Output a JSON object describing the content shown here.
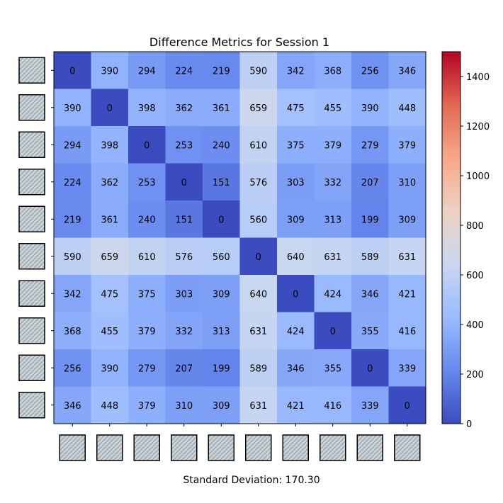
{
  "chart_data": {
    "type": "heatmap",
    "title": "Difference Metrics for Session 1",
    "row_thumbnails": [
      "image-thumbnail",
      "image-thumbnail",
      "image-thumbnail",
      "image-thumbnail",
      "image-thumbnail",
      "image-thumbnail",
      "image-thumbnail",
      "image-thumbnail",
      "image-thumbnail",
      "image-thumbnail"
    ],
    "col_thumbnails": [
      "image-thumbnail",
      "image-thumbnail",
      "image-thumbnail",
      "image-thumbnail",
      "image-thumbnail",
      "image-thumbnail",
      "image-thumbnail",
      "image-thumbnail",
      "image-thumbnail",
      "image-thumbnail"
    ],
    "matrix": [
      [
        0,
        390,
        294,
        224,
        219,
        590,
        342,
        368,
        256,
        346
      ],
      [
        390,
        0,
        398,
        362,
        361,
        659,
        475,
        455,
        390,
        448
      ],
      [
        294,
        398,
        0,
        253,
        240,
        610,
        375,
        379,
        279,
        379
      ],
      [
        224,
        362,
        253,
        0,
        151,
        576,
        303,
        332,
        207,
        310
      ],
      [
        219,
        361,
        240,
        151,
        0,
        560,
        309,
        313,
        199,
        309
      ],
      [
        590,
        659,
        610,
        576,
        560,
        0,
        640,
        631,
        589,
        631
      ],
      [
        342,
        475,
        375,
        303,
        309,
        640,
        0,
        424,
        346,
        421
      ],
      [
        368,
        455,
        379,
        332,
        313,
        631,
        424,
        0,
        355,
        416
      ],
      [
        256,
        390,
        279,
        207,
        199,
        589,
        346,
        355,
        0,
        339
      ],
      [
        346,
        448,
        379,
        310,
        309,
        631,
        421,
        416,
        339,
        0
      ]
    ],
    "colormap": "coolwarm",
    "vmin": 0,
    "vmax": 1500,
    "colorbar_ticks": [
      0,
      200,
      400,
      600,
      800,
      1000,
      1200,
      1400
    ],
    "colormap_stops": [
      "#3b4cc0",
      "#6788ee",
      "#9abbff",
      "#c9d7f0",
      "#edd1c2",
      "#f7a889",
      "#e26952",
      "#b40426"
    ],
    "footer": "Standard Deviation: 170.30"
  }
}
